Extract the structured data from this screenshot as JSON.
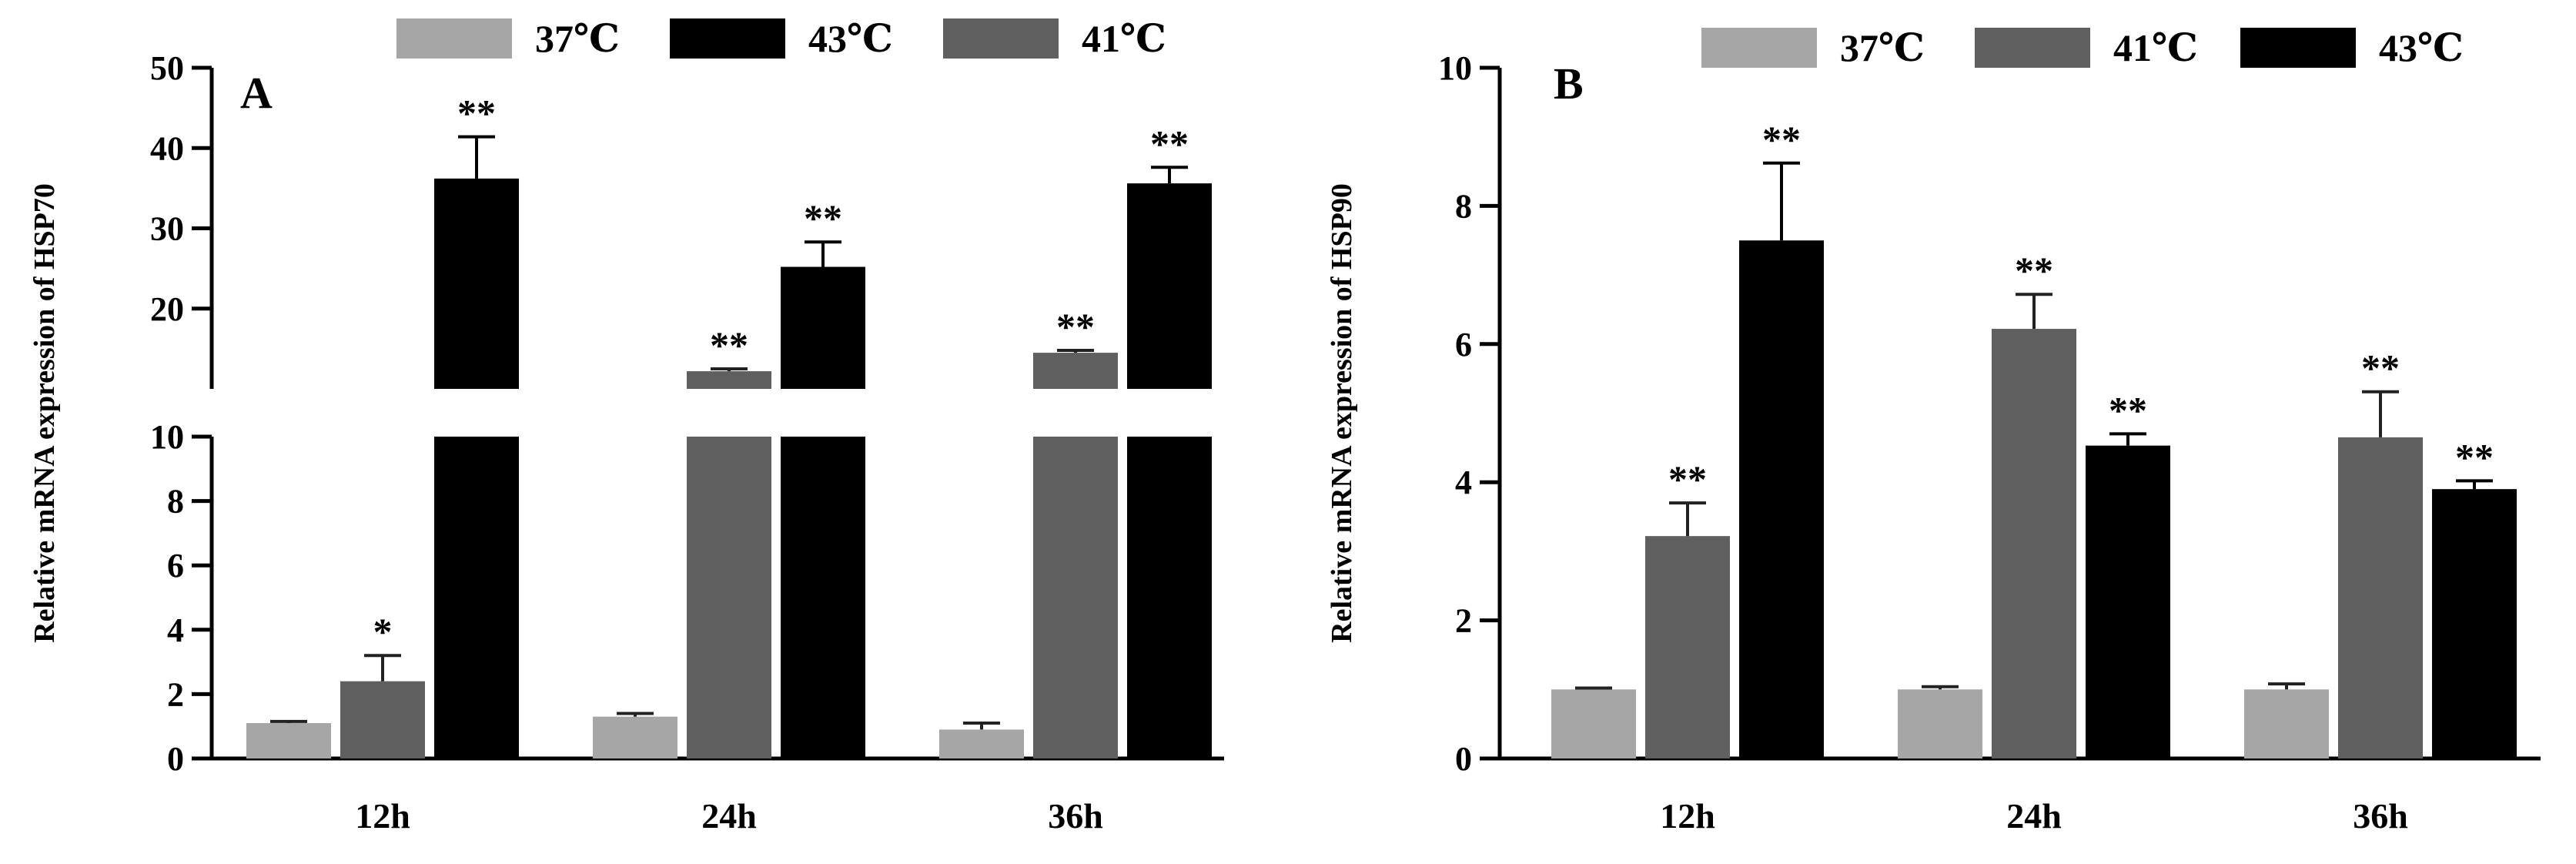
{
  "colors": {
    "37C": "#a6a6a6",
    "41C": "#5f5f5f",
    "43C": "#000000",
    "axis": "#000000",
    "background": "#ffffff"
  },
  "chart_data": [
    {
      "type": "bar",
      "panel_label": "A",
      "ylabel": "Relative mRNA expression of HSP70",
      "xlabel": "",
      "categories": [
        "12h",
        "24h",
        "36h"
      ],
      "legend": [
        "37℃",
        "43℃",
        "41℃"
      ],
      "legend_placement": "top",
      "axis_break": true,
      "ylim_lower": [
        0,
        10
      ],
      "ylim_upper": [
        10,
        50
      ],
      "yticks_lower": [
        "0",
        "2",
        "4",
        "6",
        "8",
        "10"
      ],
      "yticks_upper": [
        "10",
        "20",
        "30",
        "40",
        "50"
      ],
      "grid": false,
      "series": [
        {
          "name": "37℃",
          "color": "#a6a6a6",
          "values": [
            1.1,
            1.3,
            0.9
          ],
          "errors": [
            0.05,
            0.1,
            0.2
          ],
          "significance": [
            "",
            "",
            ""
          ]
        },
        {
          "name": "41℃",
          "color": "#5f5f5f",
          "values": [
            2.4,
            12.2,
            14.5
          ],
          "errors": [
            0.8,
            0.3,
            0.3
          ],
          "significance": [
            "*",
            "**",
            "**"
          ]
        },
        {
          "name": "43℃",
          "color": "#000000",
          "values": [
            36.2,
            25.2,
            35.6
          ],
          "errors": [
            5.2,
            3.1,
            2.0
          ],
          "significance": [
            "**",
            "**",
            "**"
          ]
        }
      ]
    },
    {
      "type": "bar",
      "panel_label": "B",
      "ylabel": "Relative mRNA expression of HSP90",
      "xlabel": "",
      "categories": [
        "12h",
        "24h",
        "36h"
      ],
      "legend": [
        "37℃",
        "41℃",
        "43℃"
      ],
      "legend_placement": "top",
      "axis_break": false,
      "ylim": [
        0,
        10
      ],
      "yticks": [
        "0",
        "2",
        "4",
        "6",
        "8",
        "10"
      ],
      "grid": false,
      "series": [
        {
          "name": "37℃",
          "color": "#a6a6a6",
          "values": [
            1.0,
            1.0,
            1.0
          ],
          "errors": [
            0.02,
            0.04,
            0.08
          ],
          "significance": [
            "",
            "",
            ""
          ]
        },
        {
          "name": "41℃",
          "color": "#5f5f5f",
          "values": [
            3.22,
            6.22,
            4.65
          ],
          "errors": [
            0.48,
            0.5,
            0.66
          ],
          "significance": [
            "**",
            "**",
            "**"
          ]
        },
        {
          "name": "43℃",
          "color": "#000000",
          "values": [
            7.5,
            4.53,
            3.9
          ],
          "errors": [
            1.12,
            0.17,
            0.12
          ],
          "significance": [
            "**",
            "**",
            "**"
          ]
        }
      ]
    }
  ]
}
